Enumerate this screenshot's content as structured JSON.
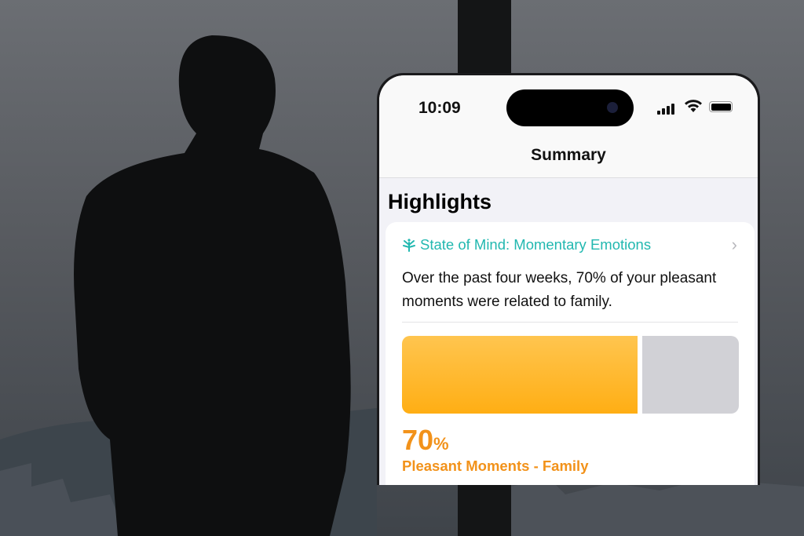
{
  "status_bar": {
    "time": "10:09",
    "icons": [
      "cellular-signal-icon",
      "wifi-icon",
      "battery-icon"
    ]
  },
  "nav": {
    "title": "Summary"
  },
  "section": {
    "title": "Highlights"
  },
  "card": {
    "icon": "state-of-mind-icon",
    "title": "State of Mind: Momentary Emotions",
    "description": "Over the past four weeks, 70% of your pleasant moments were related to family.",
    "progress_percent": 70,
    "value": "70",
    "unit": "%",
    "label": "Pleasant Moments - Family"
  },
  "colors": {
    "accent_teal": "#22b8b0",
    "accent_orange": "#f2921a",
    "bar_fill": "#ffb424",
    "bar_rest": "#d1d1d6"
  }
}
